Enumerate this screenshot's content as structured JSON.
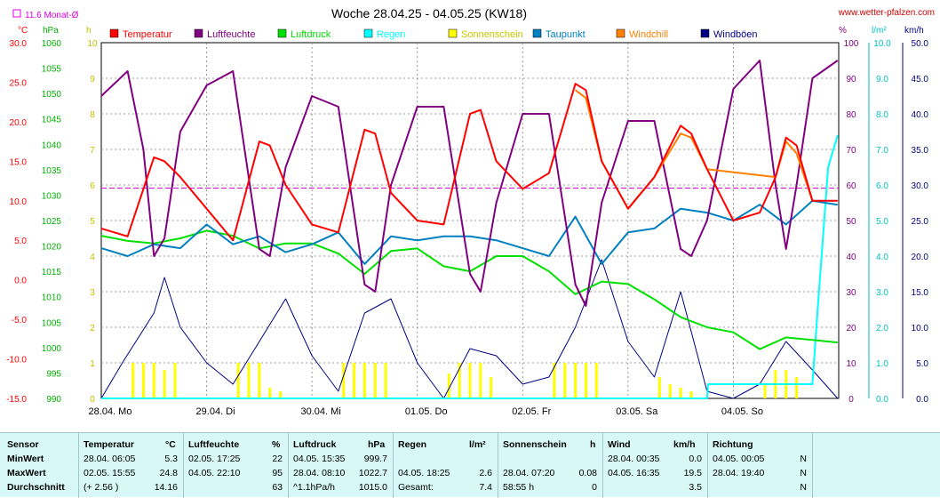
{
  "colors": {
    "temperatur": "#ff0000",
    "luftfeuchte": "#800080",
    "luftdruck": "#00e000",
    "regen": "#00ffff",
    "sonnenschein": "#ffff00",
    "taupunkt": "#0080c0",
    "windchill": "#ff8000",
    "windboeen": "#000080",
    "monatsmittel": "#e000e0",
    "grid": "#808080",
    "stats_bg": "#d8f8f8"
  },
  "header": {
    "title": "Woche 28.04.25 - 04.05.25 (KW18)",
    "site": "www.wetter-pfalzen.com",
    "monat_label": "11.6 Monat-Ø"
  },
  "axis_units": {
    "c": "°C",
    "hpa": "hPa",
    "h": "h",
    "pct": "%",
    "lm2": "l/m²",
    "kmh": "km/h"
  },
  "chart_data": {
    "type": "line",
    "title": "Woche 28.04.25 - 04.05.25 (KW18)",
    "x_ticks": [
      "28.04. Mo",
      "29.04. Di",
      "30.04. Mi",
      "01.05. Do",
      "02.05. Fr",
      "03.05. Sa",
      "04.05. So"
    ],
    "axes": {
      "temp_c": {
        "label": "°C",
        "ylim": [
          -15,
          30
        ],
        "ticks": [
          "30.0",
          "25.0",
          "20.0",
          "15.0",
          "10.0",
          "5.0",
          "0.0",
          "-5.0",
          "-10.0",
          "-15.0"
        ]
      },
      "pressure_hpa": {
        "label": "hPa",
        "ylim": [
          990,
          1060
        ],
        "ticks": [
          "1060",
          "1055",
          "1050",
          "1045",
          "1040",
          "1035",
          "1030",
          "1025",
          "1020",
          "1015",
          "1010",
          "1005",
          "1000",
          "995",
          "990"
        ]
      },
      "sun_h": {
        "label": "h",
        "ylim": [
          0,
          10
        ],
        "ticks": [
          "10",
          "9",
          "8",
          "7",
          "6",
          "5",
          "4",
          "3",
          "2",
          "1",
          "0"
        ]
      },
      "humidity_pct": {
        "label": "%",
        "ylim": [
          0,
          100
        ],
        "ticks": [
          "100",
          "90",
          "80",
          "70",
          "60",
          "50",
          "40",
          "30",
          "20",
          "10",
          "0"
        ]
      },
      "rain_lm2": {
        "label": "l/m²",
        "ylim": [
          0,
          10
        ],
        "ticks": [
          "10.0",
          "9.0",
          "8.0",
          "7.0",
          "6.0",
          "5.0",
          "4.0",
          "3.0",
          "2.0",
          "1.0",
          "0.0"
        ]
      },
      "wind_kmh": {
        "label": "km/h",
        "ylim": [
          0,
          50
        ],
        "ticks": [
          "50.0",
          "45.0",
          "40.0",
          "35.0",
          "30.0",
          "25.0",
          "20.0",
          "15.0",
          "10.0",
          "5.0",
          "0.0"
        ]
      }
    },
    "monat_mittel_c": 11.6,
    "legend": [
      "Temperatur",
      "Luftfeuchte",
      "Luftdruck",
      "Regen",
      "Sonnenschein",
      "Taupunkt",
      "Windchill",
      "Windböen"
    ],
    "series": [
      {
        "name": "Temperatur",
        "axis": "temp_c",
        "x_days": [
          0,
          0.25,
          0.5,
          0.6,
          0.75,
          1.0,
          1.25,
          1.5,
          1.6,
          1.75,
          2.0,
          2.25,
          2.5,
          2.6,
          2.75,
          3.0,
          3.25,
          3.5,
          3.6,
          3.75,
          4.0,
          4.25,
          4.5,
          4.6,
          4.75,
          5.0,
          5.25,
          5.5,
          5.6,
          5.75,
          6.0,
          6.25,
          6.4,
          6.5,
          6.6,
          6.75,
          6.99
        ],
        "values": [
          6.5,
          5.5,
          15.5,
          15.0,
          13.0,
          9.0,
          5.0,
          17.5,
          17.0,
          12.0,
          7.0,
          6.0,
          19.0,
          18.5,
          11.0,
          7.5,
          7.0,
          21.0,
          21.5,
          15.0,
          11.5,
          13.5,
          24.8,
          24.0,
          15.0,
          9.0,
          13.0,
          19.5,
          18.5,
          14.0,
          7.5,
          8.5,
          13.0,
          18.0,
          17.0,
          10.0,
          10.0
        ]
      },
      {
        "name": "Windchill",
        "axis": "temp_c",
        "x_days": [
          4.5,
          4.6,
          4.75,
          5.0,
          5.25,
          5.5,
          5.6,
          5.75,
          6.4,
          6.5,
          6.6,
          6.75
        ],
        "values": [
          24.0,
          23.0,
          15.0,
          9.0,
          13.0,
          18.5,
          18.0,
          14.0,
          13.0,
          17.5,
          16.0,
          10.0
        ]
      },
      {
        "name": "Luftfeuchte",
        "axis": "humidity_pct",
        "x_days": [
          0,
          0.25,
          0.4,
          0.5,
          0.6,
          0.75,
          1.0,
          1.25,
          1.5,
          1.6,
          1.75,
          2.0,
          2.25,
          2.5,
          2.6,
          2.75,
          3.0,
          3.25,
          3.5,
          3.6,
          3.75,
          4.0,
          4.25,
          4.5,
          4.6,
          4.75,
          5.0,
          5.25,
          5.5,
          5.6,
          5.75,
          6.0,
          6.25,
          6.4,
          6.5,
          6.6,
          6.75,
          6.99
        ],
        "values": [
          85,
          92,
          70,
          40,
          45,
          75,
          88,
          92,
          42,
          40,
          65,
          85,
          82,
          32,
          30,
          60,
          82,
          82,
          35,
          30,
          55,
          80,
          80,
          32,
          26,
          55,
          78,
          78,
          42,
          40,
          50,
          87,
          95,
          60,
          42,
          60,
          90,
          95
        ]
      },
      {
        "name": "Luftdruck",
        "axis": "pressure_hpa",
        "x_days": [
          0,
          0.25,
          0.5,
          0.75,
          1.0,
          1.25,
          1.5,
          1.75,
          2.0,
          2.25,
          2.5,
          2.75,
          3.0,
          3.25,
          3.5,
          3.75,
          4.0,
          4.25,
          4.5,
          4.75,
          5.0,
          5.25,
          5.5,
          5.75,
          6.0,
          6.25,
          6.5,
          6.75,
          6.99
        ],
        "values": [
          1022.0,
          1021.0,
          1020.5,
          1021.5,
          1023.0,
          1022.0,
          1019.5,
          1020.5,
          1020.5,
          1018.5,
          1014.5,
          1019.0,
          1019.5,
          1016.0,
          1015.0,
          1018.0,
          1018.0,
          1015.0,
          1010.5,
          1013.0,
          1012.5,
          1009.5,
          1006.0,
          1004.0,
          1003.0,
          999.7,
          1002.0,
          1001.5,
          1001.0
        ]
      },
      {
        "name": "Taupunkt",
        "axis": "temp_c",
        "x_days": [
          0,
          0.25,
          0.5,
          0.75,
          1.0,
          1.25,
          1.5,
          1.75,
          2.0,
          2.25,
          2.5,
          2.75,
          3.0,
          3.25,
          3.5,
          3.75,
          4.0,
          4.25,
          4.5,
          4.75,
          5.0,
          5.25,
          5.5,
          5.75,
          6.0,
          6.25,
          6.5,
          6.75,
          6.99
        ],
        "values": [
          4.0,
          3.0,
          4.5,
          4.0,
          7.0,
          4.5,
          5.5,
          3.5,
          4.5,
          6.0,
          2.0,
          5.5,
          5.0,
          5.5,
          5.5,
          5.0,
          4.0,
          3.0,
          8.0,
          2.0,
          6.0,
          6.5,
          9.0,
          8.5,
          7.5,
          9.5,
          7.0,
          10.0,
          9.5
        ]
      },
      {
        "name": "Regen",
        "axis": "rain_lm2",
        "x_days": [
          0,
          5.75,
          5.76,
          6.75,
          6.8,
          6.9,
          6.99
        ],
        "values": [
          0,
          0,
          0.4,
          0.4,
          2.5,
          6.5,
          7.4
        ]
      },
      {
        "name": "Windböen",
        "axis": "wind_kmh",
        "x_days": [
          0,
          0.2,
          0.5,
          0.6,
          0.75,
          1.0,
          1.25,
          1.5,
          1.75,
          2.0,
          2.25,
          2.5,
          2.75,
          3.0,
          3.25,
          3.5,
          3.75,
          4.0,
          4.25,
          4.5,
          4.75,
          5.0,
          5.25,
          5.5,
          5.75,
          6.0,
          6.25,
          6.5,
          6.75,
          6.99
        ],
        "values": [
          0,
          5,
          12,
          17,
          10,
          5,
          2,
          8,
          14,
          6,
          1,
          12,
          14,
          5,
          0,
          7,
          6,
          2,
          3,
          10,
          19.5,
          8,
          3,
          15,
          1,
          0,
          2,
          8,
          4,
          0
        ]
      },
      {
        "name": "Sonnenschein",
        "axis": "sun_h",
        "type": "bar",
        "x_days": [
          0.3,
          0.4,
          0.5,
          0.6,
          0.7,
          1.3,
          1.4,
          1.5,
          1.6,
          1.7,
          2.3,
          2.4,
          2.5,
          2.6,
          2.7,
          3.3,
          3.4,
          3.5,
          3.6,
          3.7,
          4.3,
          4.4,
          4.5,
          4.6,
          4.7,
          5.3,
          5.4,
          5.5,
          5.6,
          6.3,
          6.4,
          6.5,
          6.6
        ],
        "values": [
          1,
          1,
          1,
          0.8,
          1,
          1,
          1,
          1,
          0.3,
          0.2,
          1,
          1,
          1,
          1,
          1,
          0.7,
          1,
          1,
          1,
          0.6,
          1,
          1,
          1,
          1,
          1,
          0.6,
          0.4,
          0.3,
          0.2,
          0.4,
          0.8,
          0.8,
          0.6
        ]
      }
    ]
  },
  "stats": {
    "headers": {
      "sensor": "Sensor",
      "temp": "Temperatur",
      "temp_unit": "°C",
      "hum": "Luftfeuchte",
      "hum_unit": "%",
      "press": "Luftdruck",
      "press_unit": "hPa",
      "rain": "Regen",
      "rain_unit": "l/m²",
      "sun": "Sonnenschein",
      "sun_unit": "h",
      "wind": "Wind",
      "wind_unit": "km/h",
      "dir": "Richtung"
    },
    "rows": [
      {
        "label": "MinWert",
        "temp_time": "28.04.  06:05",
        "temp_val": "5.3",
        "hum_time": "02.05.  17:25",
        "hum_val": "22",
        "press_time": "04.05.  15:35",
        "press_val": "999.7",
        "rain_time": "",
        "rain_val": "",
        "sun_time": "",
        "sun_val": "",
        "wind_time": "28.04.  00:35",
        "wind_val": "0.0",
        "dir_time": "04.05.  00:05",
        "dir_val": "N"
      },
      {
        "label": "MaxWert",
        "temp_time": "02.05.  15:55",
        "temp_val": "24.8",
        "hum_time": "04.05.  22:10",
        "hum_val": "95",
        "press_time": "28.04.  08:10",
        "press_val": "1022.7",
        "rain_time": "04.05.  18:25",
        "rain_val": "2.6",
        "sun_time": "28.04.  07:20",
        "sun_val": "0.08",
        "wind_time": "04.05.  16:35",
        "wind_val": "19.5",
        "dir_time": "28.04.  19:40",
        "dir_val": "N"
      },
      {
        "label": "Durchschnitt",
        "temp_time": "(+ 2.56 )",
        "temp_val": "14.16",
        "hum_time": "",
        "hum_val": "63",
        "press_time": "^1.1hPa/h",
        "press_val": "1015.0",
        "rain_time": "Gesamt:",
        "rain_val": "7.4",
        "sun_time": "58:55 h",
        "sun_val": "0",
        "wind_time": "",
        "wind_val": "3.5",
        "dir_time": "",
        "dir_val": "N"
      }
    ]
  }
}
